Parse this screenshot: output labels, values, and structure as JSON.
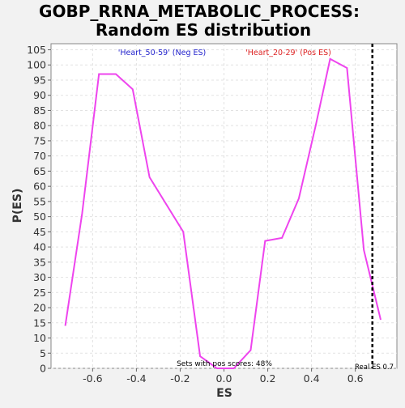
{
  "chart_data": {
    "type": "line",
    "title_line1": "GOBP_RRNA_METABOLIC_PROCESS:",
    "title_line2": "Random ES distribution",
    "xlabel": "ES",
    "ylabel": "P(ES)",
    "xlim": [
      -0.79,
      0.79
    ],
    "ylim": [
      0,
      107
    ],
    "x_ticks": [
      -0.6,
      -0.4,
      -0.2,
      0.0,
      0.2,
      0.4,
      0.6
    ],
    "x_tick_labels": [
      "-0.6",
      "-0.4",
      "-0.2",
      "0.0",
      "0.2",
      "0.4",
      "0.6"
    ],
    "y_ticks": [
      0,
      5,
      10,
      15,
      20,
      25,
      30,
      35,
      40,
      45,
      50,
      55,
      60,
      65,
      70,
      75,
      80,
      85,
      90,
      95,
      100,
      105
    ],
    "y_tick_labels": [
      "0",
      "5",
      "10",
      "15",
      "20",
      "25",
      "30",
      "35",
      "40",
      "45",
      "50",
      "55",
      "60",
      "65",
      "70",
      "75",
      "80",
      "85",
      "90",
      "95",
      "100",
      "105"
    ],
    "grid": true,
    "series": [
      {
        "color": "#ee44ee",
        "x": [
          -0.725,
          -0.648,
          -0.571,
          -0.494,
          -0.417,
          -0.34,
          -0.186,
          -0.109,
          -0.032,
          0.045,
          0.122,
          0.188,
          0.265,
          0.342,
          0.419,
          0.485,
          0.562,
          0.639,
          0.716
        ],
        "y": [
          14,
          51,
          97,
          97,
          92,
          63,
          45,
          4,
          0,
          0,
          6,
          42,
          43,
          56,
          80,
          102,
          99,
          39,
          16
        ]
      }
    ],
    "real_es": {
      "x": 0.678,
      "label": "Real ES 0.7",
      "color": "#000000"
    },
    "annotations": {
      "neg_label": "'Heart_50-59' (Neg ES)",
      "neg_color": "#2222cc",
      "pos_label": "'Heart_20-29' (Pos ES)",
      "pos_color": "#dd2222",
      "pos_scores": "Sets with pos scores: 48%"
    }
  }
}
